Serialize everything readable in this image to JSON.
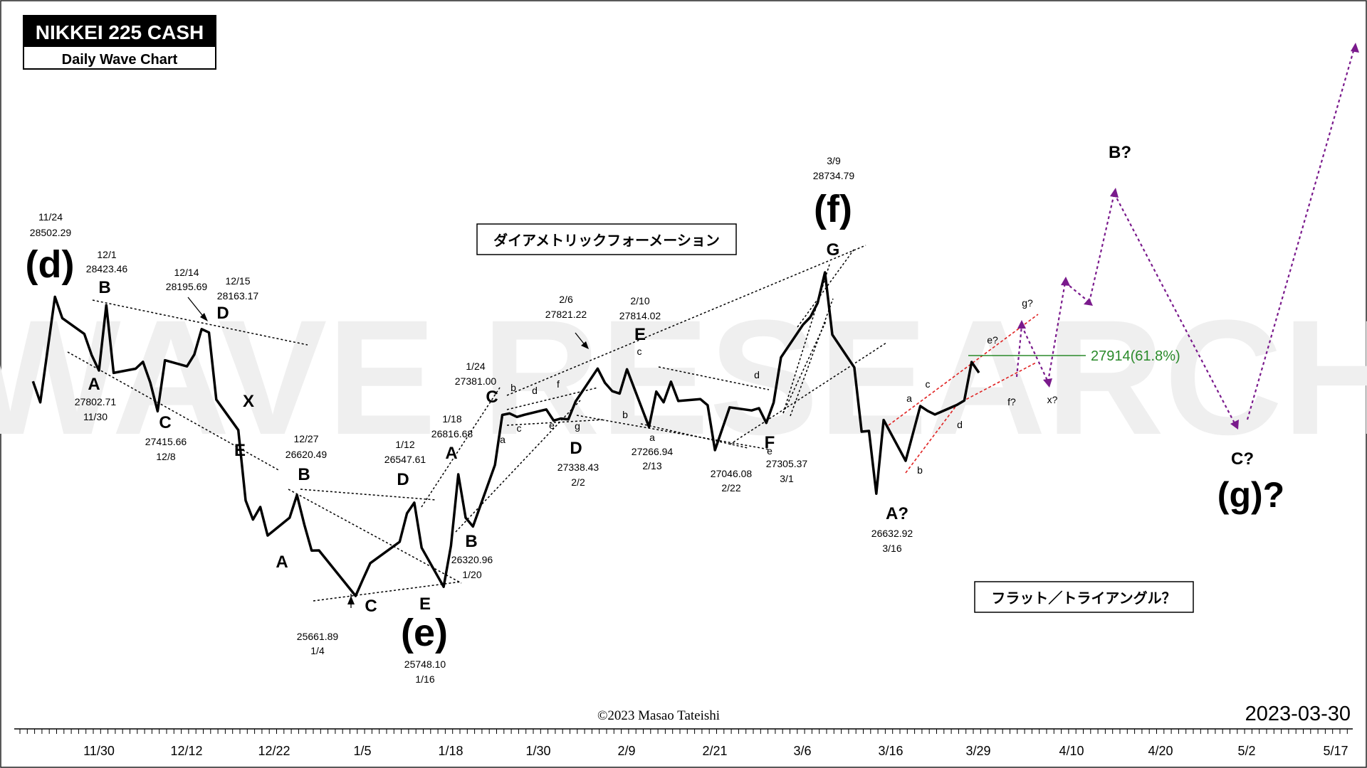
{
  "title_box": {
    "title": "NIKKEI 225 CASH",
    "subtitle": "Daily Wave Chart"
  },
  "watermark": "WAVE RESEARCH",
  "copyright": "©2023 Masao Tateishi",
  "chart_date": "2023-03-30",
  "note_boxes": {
    "diametric": "ダイアメトリックフォーメーション",
    "flat_triangle": "フラット／トライアングル？"
  },
  "fib_label": "27914(61.8%)",
  "colors": {
    "price": "#000000",
    "projection": "#7a1a8c",
    "channel_red": "#e02020",
    "fib": "#2a8a2a"
  },
  "chart_data": {
    "type": "line",
    "title": "NIKKEI 225 CASH",
    "subtitle": "Daily Wave Chart",
    "x_tick_labels": [
      "11/30",
      "12/12",
      "12/22",
      "1/5",
      "1/18",
      "1/30",
      "2/9",
      "2/21",
      "3/6",
      "3/16",
      "3/29",
      "4/10",
      "4/20",
      "5/2",
      "5/17"
    ],
    "series": [
      {
        "values": [
          [
            "11/21",
            27700
          ],
          [
            "11/22",
            27500
          ],
          [
            "11/24",
            28502.29
          ],
          [
            "11/25",
            28300
          ],
          [
            "11/28",
            28150
          ],
          [
            "11/29",
            27950
          ],
          [
            "11/30",
            27802.71
          ],
          [
            "12/1",
            28423.46
          ],
          [
            "12/2",
            27780
          ],
          [
            "12/5",
            27820
          ],
          [
            "12/6",
            27885
          ],
          [
            "12/7",
            27687
          ],
          [
            "12/8",
            27415.66
          ],
          [
            "12/9",
            27900
          ],
          [
            "12/12",
            27842
          ],
          [
            "12/13",
            27954
          ],
          [
            "12/14",
            28195.69
          ],
          [
            "12/15",
            28163.17
          ],
          [
            "12/16",
            27527
          ],
          [
            "12/19",
            27237
          ],
          [
            "12/20",
            26568
          ],
          [
            "12/21",
            26387
          ],
          [
            "12/22",
            26507
          ],
          [
            "12/23",
            26235
          ],
          [
            "12/26",
            26405
          ],
          [
            "12/27",
            26620.49
          ],
          [
            "12/28",
            26340
          ],
          [
            "12/29",
            26093
          ],
          [
            "12/30",
            26094
          ],
          [
            "1/4",
            25661.89
          ],
          [
            "1/5",
            25820
          ],
          [
            "1/6",
            25973
          ],
          [
            "1/10",
            26175
          ],
          [
            "1/11",
            26446
          ],
          [
            "1/12",
            26547.61
          ],
          [
            "1/13",
            26119
          ],
          [
            "1/16",
            25748.1
          ],
          [
            "1/17",
            26138
          ],
          [
            "1/18",
            26816.68
          ],
          [
            "1/19",
            26405
          ],
          [
            "1/20",
            26320.96
          ],
          [
            "1/23",
            26906
          ],
          [
            "1/24",
            27381.0
          ],
          [
            "1/25",
            27395
          ],
          [
            "1/26",
            27362
          ],
          [
            "1/27",
            27382
          ],
          [
            "1/30",
            27433
          ],
          [
            "1/31",
            27327
          ],
          [
            "2/1",
            27346
          ],
          [
            "2/2",
            27338.43
          ],
          [
            "2/3",
            27509
          ],
          [
            "2/6",
            27821.22
          ],
          [
            "2/7",
            27685
          ],
          [
            "2/8",
            27606
          ],
          [
            "2/9",
            27584
          ],
          [
            "2/10",
            27814.02
          ],
          [
            "2/13",
            27266.94
          ],
          [
            "2/14",
            27602
          ],
          [
            "2/15",
            27501
          ],
          [
            "2/16",
            27696
          ],
          [
            "2/17",
            27513
          ],
          [
            "2/20",
            27531
          ],
          [
            "2/21",
            27473
          ],
          [
            "2/22",
            27046.08
          ],
          [
            "2/24",
            27453
          ],
          [
            "2/27",
            27423
          ],
          [
            "2/28",
            27445
          ],
          [
            "3/1",
            27305.37
          ],
          [
            "3/2",
            27498
          ],
          [
            "3/3",
            27927
          ],
          [
            "3/6",
            28237
          ],
          [
            "3/7",
            28309
          ],
          [
            "3/8",
            28444
          ],
          [
            "3/9",
            28734.79
          ],
          [
            "3/10",
            28143
          ],
          [
            "3/13",
            27832
          ],
          [
            "3/14",
            27222
          ],
          [
            "3/15",
            27229
          ],
          [
            "3/16",
            26632.92
          ],
          [
            "3/17",
            27333
          ],
          [
            "3/20",
            26945
          ],
          [
            "3/22",
            27466
          ],
          [
            "3/23",
            27419
          ],
          [
            "3/24",
            27385
          ],
          [
            "3/27",
            27476
          ],
          [
            "3/28",
            27518
          ],
          [
            "3/29",
            27883
          ],
          [
            "3/30",
            27782
          ]
        ]
      },
      {
        "values": [
          [
            "3/30",
            27782
          ],
          [
            "3/31",
            28050
          ],
          [
            "4/3",
            27650
          ],
          [
            "4/5",
            28300
          ],
          [
            "4/6",
            28200
          ],
          [
            "4/7",
            28150
          ],
          [
            "4/10",
            28500
          ],
          [
            "4/13",
            29150
          ],
          [
            "5/2",
            27300
          ],
          [
            "5/17",
            30500
          ]
        ]
      }
    ],
    "fib_level": 27914,
    "wave_labels": {
      "big": [
        "(d)",
        "(e)",
        "(f)",
        "(g)?"
      ],
      "letters": [
        "A",
        "B",
        "C",
        "D",
        "E",
        "X",
        "A",
        "B",
        "C",
        "D",
        "E",
        "A",
        "B",
        "C",
        "D",
        "E",
        "F",
        "G",
        "A?",
        "B?",
        "C?"
      ],
      "small": [
        "a",
        "b",
        "c",
        "d",
        "e",
        "f",
        "g",
        "a",
        "b",
        "c",
        "d",
        "e",
        "a",
        "b",
        "c",
        "d",
        "e?",
        "f?",
        "g?",
        "x?"
      ]
    },
    "price_annotations": [
      {
        "date": "11/24",
        "price": "28502.29"
      },
      {
        "date": "12/1",
        "price": "28423.46"
      },
      {
        "date": "12/14",
        "price": "28195.69"
      },
      {
        "date": "12/15",
        "price": "28163.17"
      },
      {
        "date": "11/30",
        "price": "27802.71"
      },
      {
        "date": "12/8",
        "price": "27415.66"
      },
      {
        "date": "12/27",
        "price": "26620.49"
      },
      {
        "date": "1/4",
        "price": "25661.89"
      },
      {
        "date": "1/12",
        "price": "26547.61"
      },
      {
        "date": "1/16",
        "price": "25748.10"
      },
      {
        "date": "1/18",
        "price": "26816.68"
      },
      {
        "date": "1/20",
        "price": "26320.96"
      },
      {
        "date": "1/24",
        "price": "27381.00"
      },
      {
        "date": "2/2",
        "price": "27338.43"
      },
      {
        "date": "2/6",
        "price": "27821.22"
      },
      {
        "date": "2/10",
        "price": "27814.02"
      },
      {
        "date": "2/13",
        "price": "27266.94"
      },
      {
        "date": "2/22",
        "price": "27046.08"
      },
      {
        "date": "3/1",
        "price": "27305.37"
      },
      {
        "date": "3/9",
        "price": "28734.79"
      },
      {
        "date": "3/16",
        "price": "26632.92"
      }
    ]
  }
}
